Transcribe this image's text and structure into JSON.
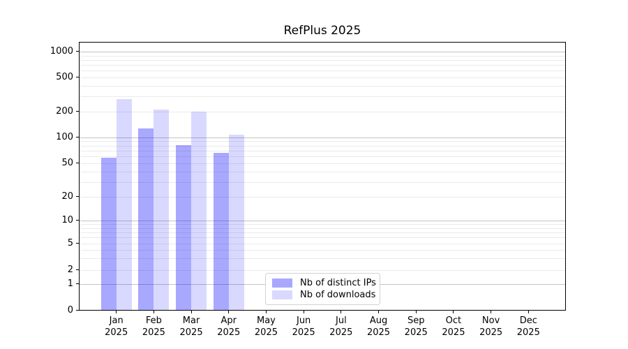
{
  "title": "RefPlus 2025",
  "chart_data": {
    "type": "bar",
    "title": "RefPlus 2025",
    "categories": [
      "Jan",
      "Feb",
      "Mar",
      "Apr",
      "May",
      "Jun",
      "Jul",
      "Aug",
      "Sep",
      "Oct",
      "Nov",
      "Dec"
    ],
    "year": "2025",
    "series": [
      {
        "name": "Nb of distinct IPs",
        "color": "rgba(0,0,255,0.34)",
        "values": [
          58,
          126,
          81,
          66,
          null,
          null,
          null,
          null,
          null,
          null,
          null,
          null
        ]
      },
      {
        "name": "Nb of downloads",
        "color": "rgba(0,0,255,0.15)",
        "values": [
          280,
          212,
          200,
          107,
          null,
          null,
          null,
          null,
          null,
          null,
          null,
          null
        ]
      }
    ],
    "y_ticks": [
      0,
      1,
      2,
      5,
      10,
      20,
      50,
      100,
      200,
      500,
      1000
    ],
    "y_minor_gridlines": [
      3,
      4,
      6,
      7,
      8,
      9,
      30,
      40,
      60,
      70,
      80,
      90,
      300,
      400,
      600,
      700,
      800,
      900
    ],
    "y_scale": "symlog",
    "ylim": [
      0,
      1400
    ],
    "grid": "horizontal",
    "legend_position": "lower center inside plot",
    "legend_border_color": "#d2d2d2",
    "axis_color": "#000000",
    "major_grid_color": "#c3c3c3",
    "minor_grid_color": "#eaeaea"
  }
}
